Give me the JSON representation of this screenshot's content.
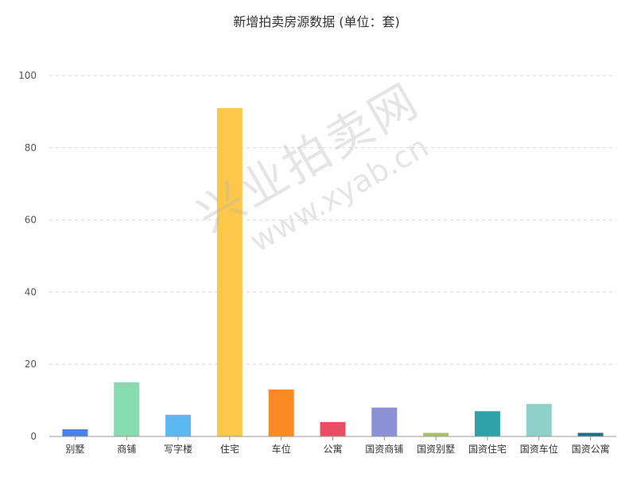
{
  "chart_data": {
    "type": "bar",
    "title": "新增拍卖房源数据 (单位：套)",
    "xlabel": "",
    "ylabel": "",
    "ylim": [
      0,
      100
    ],
    "yticks": [
      0,
      20,
      40,
      60,
      80,
      100
    ],
    "grid": true,
    "categories": [
      "别墅",
      "商铺",
      "写字楼",
      "住宅",
      "车位",
      "公寓",
      "国资商铺",
      "国资别墅",
      "国资住宅",
      "国资车位",
      "国资公寓"
    ],
    "values": [
      2,
      15,
      6,
      91,
      13,
      4,
      8,
      1,
      7,
      9,
      1
    ],
    "colors": [
      "#4d7fe8",
      "#86dcae",
      "#5cb8f0",
      "#ffc84a",
      "#fb8a22",
      "#e84d64",
      "#8c90d4",
      "#a8c268",
      "#2ea2a6",
      "#8fd0c8",
      "#1f6f86"
    ]
  },
  "watermark": {
    "text": "兴业拍卖网",
    "url": "www.xyab.cn"
  }
}
